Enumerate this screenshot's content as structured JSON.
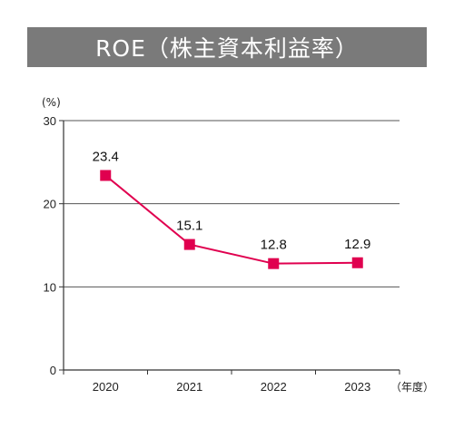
{
  "title": "ROE（株主資本利益率）",
  "chart_data": {
    "type": "line",
    "title": "ROE（株主資本利益率）",
    "categories": [
      "2020",
      "2021",
      "2022",
      "2023"
    ],
    "series": [
      {
        "values": [
          23.4,
          15.1,
          12.8,
          12.9
        ]
      }
    ],
    "data_labels": [
      "23.4",
      "15.1",
      "12.8",
      "12.9"
    ],
    "ylabel": "(%)",
    "xlabel": "（年度）",
    "ylim": [
      0,
      30
    ],
    "yticks": [
      0,
      10,
      20,
      30
    ],
    "grid": true,
    "colors": {
      "line": "#e0004f",
      "marker": "#e0004f",
      "title_bar": "#7a7a7a",
      "grid": "#555555"
    }
  }
}
